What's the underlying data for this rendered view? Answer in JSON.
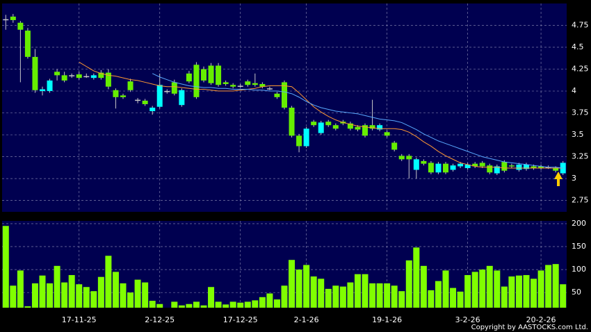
{
  "chart_data": [
    {
      "type": "candlestick",
      "open": [
        4.82,
        4.85,
        4.78,
        4.69,
        4.39,
        4.0,
        4.0,
        4.22,
        4.18,
        4.18,
        4.19,
        4.17,
        4.15,
        4.21,
        4.21,
        4.01,
        3.95,
        4.11,
        3.9,
        3.89,
        3.77,
        3.82,
        4.0,
        4.1,
        3.84,
        4.2,
        4.3,
        4.25,
        4.29,
        4.29,
        4.1,
        4.07,
        4.06,
        4.11,
        4.09,
        4.08,
        4.03,
        3.97,
        4.1,
        3.81,
        3.49,
        3.37,
        3.65,
        3.52,
        3.65,
        3.61,
        3.65,
        3.63,
        3.59,
        3.61,
        3.61,
        3.56,
        3.53,
        3.41,
        3.26,
        3.26,
        3.1,
        3.2,
        3.18,
        3.07,
        3.17,
        3.1,
        3.14,
        3.12,
        3.17,
        3.18,
        3.15,
        3.06,
        3.19,
        3.15,
        3.1,
        3.11,
        3.14,
        3.14,
        3.13,
        3.12,
        3.06
      ],
      "high": [
        4.87,
        4.88,
        4.8,
        4.72,
        4.48,
        4.05,
        4.14,
        4.25,
        4.22,
        4.2,
        4.22,
        4.2,
        4.2,
        4.24,
        4.25,
        4.03,
        3.97,
        4.14,
        3.92,
        3.91,
        3.83,
        4.2,
        4.02,
        4.13,
        4.03,
        4.23,
        4.33,
        4.28,
        4.32,
        4.32,
        4.12,
        4.09,
        4.08,
        4.13,
        4.2,
        4.1,
        4.05,
        3.99,
        4.12,
        3.83,
        3.51,
        3.59,
        3.67,
        3.66,
        3.67,
        3.63,
        3.67,
        3.65,
        3.61,
        3.63,
        3.9,
        3.63,
        3.55,
        3.43,
        3.28,
        3.28,
        3.24,
        3.22,
        3.2,
        3.19,
        3.19,
        3.17,
        3.19,
        3.18,
        3.19,
        3.2,
        3.17,
        3.16,
        3.21,
        3.17,
        3.18,
        3.18,
        3.16,
        3.16,
        3.15,
        3.14,
        3.2
      ],
      "low": [
        4.7,
        4.78,
        4.1,
        4.37,
        3.98,
        3.95,
        3.98,
        4.12,
        4.1,
        4.15,
        4.13,
        4.15,
        4.13,
        4.13,
        4.02,
        3.8,
        3.91,
        3.99,
        3.86,
        3.83,
        3.73,
        3.8,
        3.97,
        3.95,
        3.82,
        4.09,
        3.91,
        4.1,
        4.07,
        4.05,
        4.06,
        4.03,
        4.04,
        4.05,
        4.05,
        4.03,
        4.01,
        3.91,
        3.79,
        3.47,
        3.3,
        3.35,
        3.59,
        3.5,
        3.59,
        3.55,
        3.61,
        3.55,
        3.54,
        3.47,
        3.55,
        3.54,
        3.47,
        3.31,
        3.2,
        3.0,
        3.0,
        3.15,
        3.05,
        3.05,
        3.05,
        3.08,
        3.12,
        3.1,
        3.12,
        3.12,
        3.05,
        3.04,
        3.07,
        3.12,
        3.08,
        3.09,
        3.1,
        3.1,
        3.11,
        3.07,
        3.04
      ],
      "close": [
        4.82,
        4.81,
        4.7,
        4.39,
        4.01,
        4.02,
        4.12,
        4.18,
        4.12,
        4.18,
        4.15,
        4.17,
        4.18,
        4.15,
        4.05,
        3.93,
        3.93,
        4.01,
        3.9,
        3.85,
        3.81,
        4.07,
        4.0,
        3.97,
        4.01,
        4.11,
        3.93,
        4.12,
        4.09,
        4.07,
        4.08,
        4.05,
        4.06,
        4.07,
        4.07,
        4.05,
        4.03,
        3.93,
        3.81,
        3.49,
        3.37,
        3.57,
        3.61,
        3.64,
        3.61,
        3.57,
        3.63,
        3.57,
        3.56,
        3.49,
        3.57,
        3.61,
        3.49,
        3.33,
        3.22,
        3.22,
        3.22,
        3.17,
        3.07,
        3.17,
        3.07,
        3.15,
        3.17,
        3.16,
        3.14,
        3.14,
        3.07,
        3.14,
        3.09,
        3.14,
        3.16,
        3.16,
        3.12,
        3.12,
        3.13,
        3.09,
        3.18
      ],
      "up_color": "#00ffff",
      "down_color": "#66ee00",
      "flat_color": "#c8c8c8",
      "overlays": [
        {
          "color": "#ff9933",
          "values": [
            null,
            null,
            null,
            null,
            null,
            null,
            null,
            null,
            null,
            null,
            4.33,
            4.28,
            4.23,
            4.2,
            4.18,
            4.17,
            4.15,
            4.13,
            4.12,
            4.1,
            4.08,
            4.06,
            4.05,
            4.05,
            4.04,
            4.03,
            4.02,
            4.02,
            4.01,
            4.0,
            4.0,
            4.0,
            4.01,
            4.02,
            4.03,
            4.05,
            4.06,
            4.06,
            4.06,
            4.05,
            3.98,
            3.9,
            3.82,
            3.76,
            3.71,
            3.67,
            3.64,
            3.62,
            3.6,
            3.59,
            3.58,
            3.57,
            3.57,
            3.57,
            3.56,
            3.53,
            3.48,
            3.42,
            3.37,
            3.31,
            3.26,
            3.22,
            3.18,
            3.16,
            3.14,
            3.13,
            3.13,
            3.13,
            3.12,
            3.12,
            3.12,
            3.12,
            3.12,
            3.12,
            3.12,
            3.12,
            3.12
          ]
        },
        {
          "color": "#5aaaff",
          "values": [
            null,
            null,
            null,
            null,
            null,
            null,
            null,
            null,
            null,
            null,
            null,
            null,
            null,
            null,
            null,
            null,
            null,
            null,
            null,
            null,
            4.2,
            4.16,
            4.13,
            4.1,
            4.08,
            4.06,
            4.05,
            4.04,
            4.04,
            4.03,
            4.03,
            4.02,
            4.02,
            4.02,
            4.01,
            4.01,
            4.0,
            4.0,
            3.99,
            3.97,
            3.93,
            3.88,
            3.84,
            3.81,
            3.79,
            3.77,
            3.76,
            3.75,
            3.74,
            3.72,
            3.7,
            3.68,
            3.67,
            3.66,
            3.64,
            3.6,
            3.56,
            3.51,
            3.47,
            3.43,
            3.4,
            3.37,
            3.34,
            3.31,
            3.28,
            3.25,
            3.23,
            3.21,
            3.19,
            3.18,
            3.17,
            3.16,
            3.15,
            3.14,
            3.13,
            3.13,
            3.12
          ]
        }
      ],
      "ylim": [
        2.62,
        5.0
      ],
      "yticks": [
        2.75,
        3,
        3.25,
        3.5,
        3.75,
        4,
        4.25,
        4.5,
        4.75
      ],
      "grid": true
    },
    {
      "type": "bar",
      "categories": [
        null,
        null,
        null,
        null,
        null,
        null,
        null,
        null,
        null,
        null,
        "17-11-25",
        null,
        null,
        null,
        null,
        null,
        null,
        null,
        null,
        null,
        null,
        "2-12-25",
        null,
        null,
        null,
        null,
        null,
        null,
        null,
        null,
        null,
        null,
        "17-12-25",
        null,
        null,
        null,
        null,
        null,
        null,
        null,
        null,
        "2-1-26",
        null,
        null,
        null,
        null,
        null,
        null,
        null,
        null,
        null,
        null,
        "19-1-26",
        null,
        null,
        null,
        null,
        null,
        null,
        null,
        null,
        null,
        null,
        "3-2-26",
        null,
        null,
        null,
        null,
        null,
        null,
        null,
        null,
        null,
        "20-2-26",
        null,
        null,
        null
      ],
      "values": [
        195,
        65,
        98,
        20,
        70,
        87,
        70,
        108,
        72,
        88,
        68,
        62,
        53,
        84,
        130,
        95,
        70,
        50,
        78,
        72,
        32,
        25,
        17,
        30,
        22,
        25,
        30,
        22,
        62,
        30,
        24,
        30,
        28,
        30,
        33,
        40,
        48,
        35,
        65,
        121,
        100,
        110,
        85,
        80,
        58,
        65,
        63,
        72,
        90,
        90,
        70,
        70,
        70,
        65,
        53,
        120,
        148,
        108,
        55,
        75,
        98,
        60,
        52,
        88,
        95,
        100,
        108,
        98,
        63,
        85,
        87,
        88,
        80,
        98,
        110,
        112,
        68
      ],
      "color": "#80ff00",
      "ylim": [
        17,
        206
      ],
      "yticks": [
        50,
        100,
        150,
        200
      ],
      "grid": true
    }
  ],
  "copyright": "Copyright by AASTOCKS.com Ltd."
}
